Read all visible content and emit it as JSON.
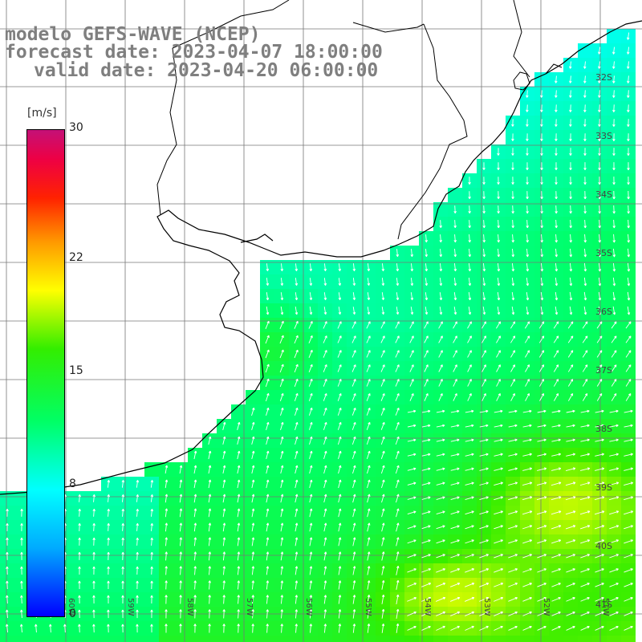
{
  "header": {
    "line1": "modelo GEFS-WAVE (NCEP)",
    "line2": "forecast date: 2023-04-07 18:00:00",
    "line3": "valid date: 2023-04-20 06:00:00"
  },
  "legend": {
    "units": "[m/s]",
    "ticks": [
      {
        "label": "30",
        "value": 30
      },
      {
        "label": "22",
        "value": 22
      },
      {
        "label": "15",
        "value": 15
      },
      {
        "label": "8",
        "value": 8
      },
      {
        "label": "0",
        "value": 0
      }
    ],
    "colors": [
      "#0000ff",
      "#00aaff",
      "#00ffff",
      "#00ff66",
      "#33ee00",
      "#ffff00",
      "#ff9900",
      "#ff2200",
      "#c41177"
    ]
  },
  "map": {
    "lat_labels": [
      "32S",
      "33S",
      "34S",
      "35S",
      "36S",
      "37S",
      "38S",
      "39S",
      "40S",
      "41S"
    ],
    "lon_labels": [
      "60W",
      "59W",
      "58W",
      "57W",
      "56W",
      "55W",
      "54W",
      "53W",
      "52W",
      "51W"
    ]
  }
}
